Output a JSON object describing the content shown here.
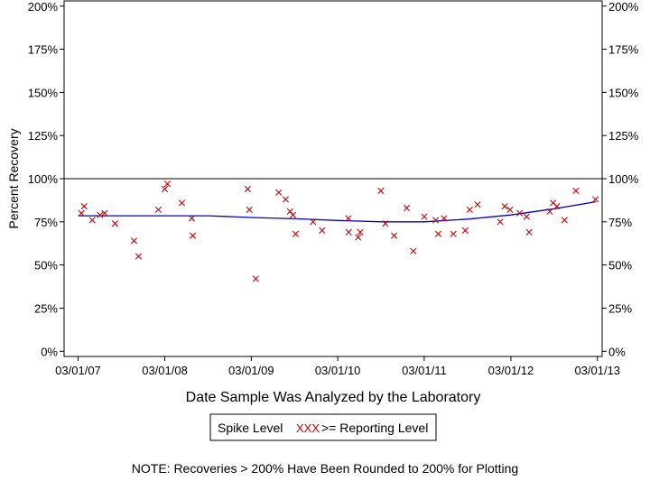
{
  "chart_data": {
    "type": "scatter",
    "title": "",
    "xlabel": "Date Sample Was Analyzed by the Laboratory",
    "ylabel": "Percent Recovery",
    "xlim": [
      "2007-01-01",
      "2013-03-21"
    ],
    "ylim": [
      -3,
      203
    ],
    "x_ticks": [
      "03/01/07",
      "03/01/08",
      "03/01/09",
      "03/01/10",
      "03/01/11",
      "03/01/12",
      "03/01/13"
    ],
    "x_tick_dates": [
      "2007-03-01",
      "2008-03-01",
      "2009-03-01",
      "2010-03-01",
      "2011-03-01",
      "2012-03-01",
      "2013-03-01"
    ],
    "y_ticks": [
      "0%",
      "25%",
      "50%",
      "75%",
      "100%",
      "125%",
      "150%",
      "175%",
      "200%"
    ],
    "y_tick_values": [
      0,
      25,
      50,
      75,
      100,
      125,
      150,
      175,
      200
    ],
    "reference_line": 100,
    "marker_color": "#cc0000",
    "trend_color": "#0000cc",
    "legend_position": "bottom-center",
    "series": [
      {
        "name": ">= Reporting Level",
        "marker": "x",
        "points": [
          {
            "x": "2007-03-15",
            "y": 80
          },
          {
            "x": "2007-03-27",
            "y": 84
          },
          {
            "x": "2007-04-30",
            "y": 76
          },
          {
            "x": "2007-06-02",
            "y": 79
          },
          {
            "x": "2007-06-21",
            "y": 80
          },
          {
            "x": "2007-08-04",
            "y": 74
          },
          {
            "x": "2007-10-23",
            "y": 64
          },
          {
            "x": "2007-11-11",
            "y": 55
          },
          {
            "x": "2008-02-03",
            "y": 82
          },
          {
            "x": "2008-03-01",
            "y": 94
          },
          {
            "x": "2008-03-12",
            "y": 97
          },
          {
            "x": "2008-05-12",
            "y": 86
          },
          {
            "x": "2008-06-23",
            "y": 77
          },
          {
            "x": "2008-06-27",
            "y": 67
          },
          {
            "x": "2009-02-14",
            "y": 94
          },
          {
            "x": "2009-02-21",
            "y": 82
          },
          {
            "x": "2009-03-20",
            "y": 42
          },
          {
            "x": "2009-06-25",
            "y": 92
          },
          {
            "x": "2009-07-24",
            "y": 88
          },
          {
            "x": "2009-08-12",
            "y": 81
          },
          {
            "x": "2009-08-24",
            "y": 79
          },
          {
            "x": "2009-09-04",
            "y": 68
          },
          {
            "x": "2009-11-17",
            "y": 75
          },
          {
            "x": "2009-12-25",
            "y": 70
          },
          {
            "x": "2010-04-15",
            "y": 77
          },
          {
            "x": "2010-04-16",
            "y": 69
          },
          {
            "x": "2010-05-26",
            "y": 66
          },
          {
            "x": "2010-06-04",
            "y": 69
          },
          {
            "x": "2010-08-30",
            "y": 93
          },
          {
            "x": "2010-09-18",
            "y": 74
          },
          {
            "x": "2010-10-25",
            "y": 67
          },
          {
            "x": "2010-12-17",
            "y": 83
          },
          {
            "x": "2011-01-14",
            "y": 58
          },
          {
            "x": "2011-03-01",
            "y": 78
          },
          {
            "x": "2011-04-18",
            "y": 76
          },
          {
            "x": "2011-04-29",
            "y": 68
          },
          {
            "x": "2011-05-24",
            "y": 77
          },
          {
            "x": "2011-07-02",
            "y": 68
          },
          {
            "x": "2011-08-21",
            "y": 70
          },
          {
            "x": "2011-09-09",
            "y": 82
          },
          {
            "x": "2011-10-12",
            "y": 85
          },
          {
            "x": "2012-01-16",
            "y": 75
          },
          {
            "x": "2012-02-04",
            "y": 84
          },
          {
            "x": "2012-02-26",
            "y": 82
          },
          {
            "x": "2012-04-07",
            "y": 80
          },
          {
            "x": "2012-05-06",
            "y": 78
          },
          {
            "x": "2012-05-17",
            "y": 69
          },
          {
            "x": "2012-08-12",
            "y": 81
          },
          {
            "x": "2012-08-26",
            "y": 86
          },
          {
            "x": "2012-09-11",
            "y": 84
          },
          {
            "x": "2012-10-13",
            "y": 76
          },
          {
            "x": "2012-11-30",
            "y": 93
          },
          {
            "x": "2013-02-21",
            "y": 88
          }
        ]
      },
      {
        "name": "trend",
        "type": "line",
        "points": [
          {
            "x": "2007-03-01",
            "y": 78.5
          },
          {
            "x": "2007-09-01",
            "y": 78.5
          },
          {
            "x": "2008-03-01",
            "y": 78.5
          },
          {
            "x": "2008-09-01",
            "y": 78.5
          },
          {
            "x": "2009-03-01",
            "y": 77.5
          },
          {
            "x": "2009-09-01",
            "y": 76.8
          },
          {
            "x": "2010-03-01",
            "y": 75.8
          },
          {
            "x": "2010-09-01",
            "y": 75.0
          },
          {
            "x": "2011-03-01",
            "y": 75.0
          },
          {
            "x": "2011-09-01",
            "y": 76.6
          },
          {
            "x": "2012-03-01",
            "y": 79.0
          },
          {
            "x": "2012-09-01",
            "y": 82.6
          },
          {
            "x": "2013-02-21",
            "y": 86.6
          }
        ]
      }
    ],
    "legend": {
      "label_spike": "Spike Level",
      "symbol": "XXX",
      "label_reporting": ">= Reporting Level"
    },
    "note": "NOTE: Recoveries > 200% Have Been Rounded to 200% for Plotting"
  }
}
